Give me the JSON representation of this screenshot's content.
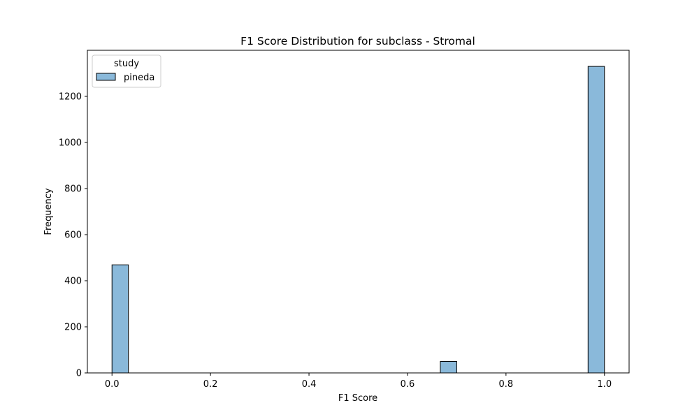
{
  "chart_data": {
    "type": "bar",
    "subtype": "histogram",
    "title": "F1 Score Distribution for subclass - Stromal",
    "xlabel": "F1 Score",
    "ylabel": "Frequency",
    "xlim": [
      -0.05,
      1.05
    ],
    "ylim": [
      0,
      1400
    ],
    "xticks": [
      0.0,
      0.2,
      0.4,
      0.6,
      0.8,
      1.0
    ],
    "xtick_labels": [
      "0.0",
      "0.2",
      "0.4",
      "0.6",
      "0.8",
      "1.0"
    ],
    "yticks": [
      0,
      200,
      400,
      600,
      800,
      1000,
      1200
    ],
    "ytick_labels": [
      "0",
      "200",
      "400",
      "600",
      "800",
      "1000",
      "1200"
    ],
    "grid": false,
    "legend": {
      "title": "study",
      "placement": "top-left",
      "entries": [
        "pineda"
      ]
    },
    "series": [
      {
        "name": "pineda",
        "color": "#8ab9da",
        "edge_color": "#000000",
        "bins": [
          {
            "x0": 0.0,
            "x1": 0.0333,
            "value": 469
          },
          {
            "x0": 0.6667,
            "x1": 0.7,
            "value": 50
          },
          {
            "x0": 0.9667,
            "x1": 1.0,
            "value": 1330
          }
        ]
      }
    ]
  }
}
